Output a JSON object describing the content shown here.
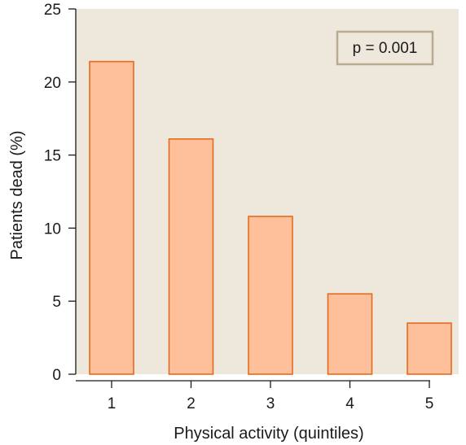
{
  "chart_data": {
    "type": "bar",
    "categories": [
      "1",
      "2",
      "3",
      "4",
      "5"
    ],
    "values": [
      21.4,
      16.1,
      10.8,
      5.5,
      3.5
    ],
    "xlabel": "Physical activity (quintiles)",
    "ylabel": "Patients dead (%)",
    "ylim": [
      0,
      25
    ],
    "yticks": [
      "0",
      "5",
      "10",
      "15",
      "20",
      "25"
    ],
    "annotation": "p = 0.001",
    "legend_position": "top-right",
    "grid": false,
    "colors": {
      "plot_background": "#ede7dc",
      "bar_fill": "#fdc09a",
      "bar_stroke": "#e86a1c",
      "annotation_box_stroke": "#b9ac8e",
      "axis": "#1a1a1a"
    }
  }
}
